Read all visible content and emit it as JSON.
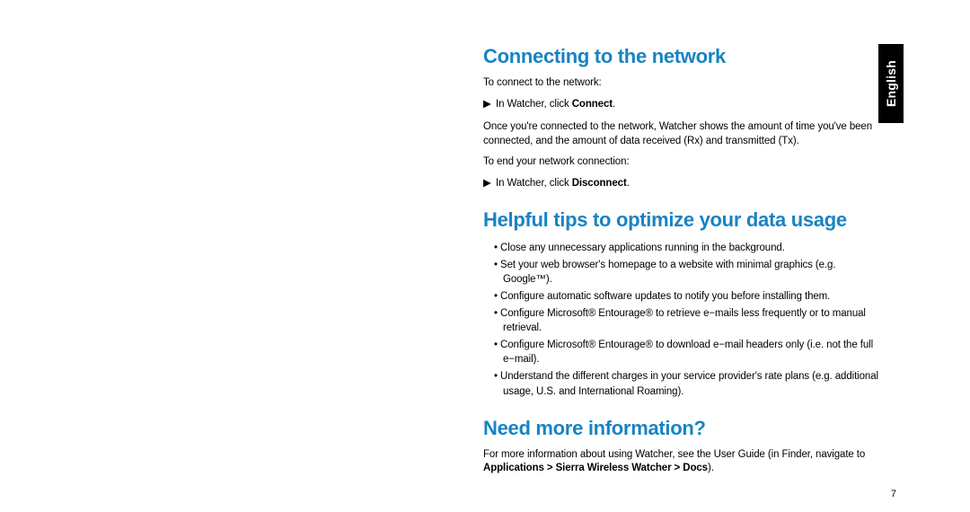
{
  "colors": {
    "heading": "#1883c4",
    "body": "#000000",
    "tab_bg": "#000000",
    "tab_text": "#ffffff",
    "page_bg": "#ffffff"
  },
  "language_tab": "English",
  "page_number": "7",
  "sections": {
    "s1": {
      "heading": "Connecting to the network",
      "p1": "To connect to the network:",
      "step1_prefix": "In Watcher, click ",
      "step1_bold": "Connect",
      "step1_suffix": ".",
      "p2": "Once you're connected to the network, Watcher shows the amount of time you've been connected, and the amount of data received (Rx) and transmitted (Tx).",
      "p3": "To end your network connection:",
      "step2_prefix": "In Watcher, click ",
      "step2_bold": "Disconnect",
      "step2_suffix": "."
    },
    "s2": {
      "heading": "Helpful tips to optimize your data usage",
      "bullets": [
        "Close any unnecessary applications running in the background.",
        "Set your web browser's homepage to a website with minimal graphics (e.g. Google™).",
        "Configure automatic software updates to notify you before installing them.",
        "Configure Microsoft® Entourage® to retrieve e−mails less frequently or to manual retrieval.",
        "Configure Microsoft® Entourage® to download e−mail headers only (i.e. not the full e−mail).",
        "Understand the different charges in your service provider's rate plans (e.g. additional usage, U.S. and International Roaming)."
      ]
    },
    "s3": {
      "heading": "Need more information?",
      "p1_prefix": "For more information about using Watcher, see the User Guide (in Finder, navigate to ",
      "p1_bold": "Applications > Sierra Wireless Watcher > Docs",
      "p1_suffix": ")."
    }
  },
  "arrow_glyph": "▶"
}
